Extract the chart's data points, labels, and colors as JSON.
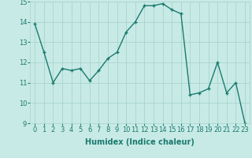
{
  "x": [
    0,
    1,
    2,
    3,
    4,
    5,
    6,
    7,
    8,
    9,
    10,
    11,
    12,
    13,
    14,
    15,
    16,
    17,
    18,
    19,
    20,
    21,
    22,
    23
  ],
  "y": [
    13.9,
    12.5,
    11.0,
    11.7,
    11.6,
    11.7,
    11.1,
    11.6,
    12.2,
    12.5,
    13.5,
    14.0,
    14.8,
    14.8,
    14.9,
    14.6,
    14.4,
    10.4,
    10.5,
    10.7,
    12.0,
    10.5,
    11.0,
    9.0
  ],
  "line_color": "#1a7a6e",
  "marker": "+",
  "bg_color": "#c8eae6",
  "grid_color": "#a8d4ce",
  "xlabel": "Humidex (Indice chaleur)",
  "ylim": [
    9,
    15
  ],
  "xlim": [
    -0.5,
    23.5
  ],
  "yticks": [
    9,
    10,
    11,
    12,
    13,
    14,
    15
  ],
  "xticks": [
    0,
    1,
    2,
    3,
    4,
    5,
    6,
    7,
    8,
    9,
    10,
    11,
    12,
    13,
    14,
    15,
    16,
    17,
    18,
    19,
    20,
    21,
    22,
    23
  ],
  "xlabel_fontsize": 7,
  "tick_fontsize": 6,
  "linewidth": 1.0,
  "markersize": 3,
  "markeredgewidth": 1.0
}
